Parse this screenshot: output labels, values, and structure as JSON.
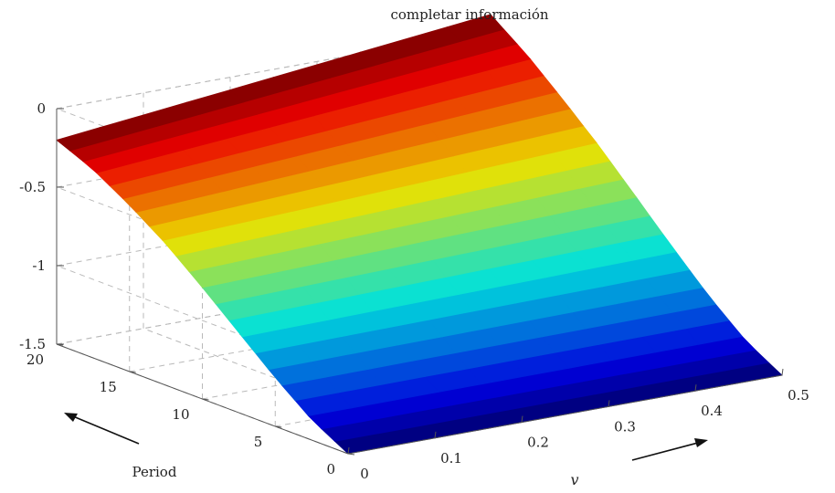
{
  "chart_data": {
    "type": "surface",
    "title": "completar información",
    "xlabel": "v",
    "ylabel": "Period",
    "zlabel": "",
    "x_ticks": [
      "0",
      "0.1",
      "0.2",
      "0.3",
      "0.4",
      "0.5"
    ],
    "y_ticks": [
      "0",
      "5",
      "10",
      "15",
      "20"
    ],
    "z_ticks": [
      "0",
      "-0.5",
      "-1",
      "-1.5"
    ],
    "xlim": [
      0,
      0.5
    ],
    "ylim": [
      0,
      20
    ],
    "zlim": [
      -1.5,
      0
    ],
    "grid": true,
    "colormap": "jet",
    "corner_values": {
      "period_0_v_0": -1.5,
      "period_0_v_0.5": -1.5,
      "period_20_v_0": -0.2,
      "period_20_v_0.5": 0.1
    },
    "surface_profile_along_period": {
      "period": [
        0,
        2.5,
        5,
        7.5,
        10,
        12.5,
        15,
        17.5,
        20
      ],
      "value_at_v_0": [
        -1.5,
        -1.37,
        -1.19,
        -0.99,
        -0.79,
        -0.6,
        -0.44,
        -0.3,
        -0.2
      ]
    },
    "annotation_arrows": [
      "period-direction-arrow",
      "v-direction-arrow"
    ]
  }
}
